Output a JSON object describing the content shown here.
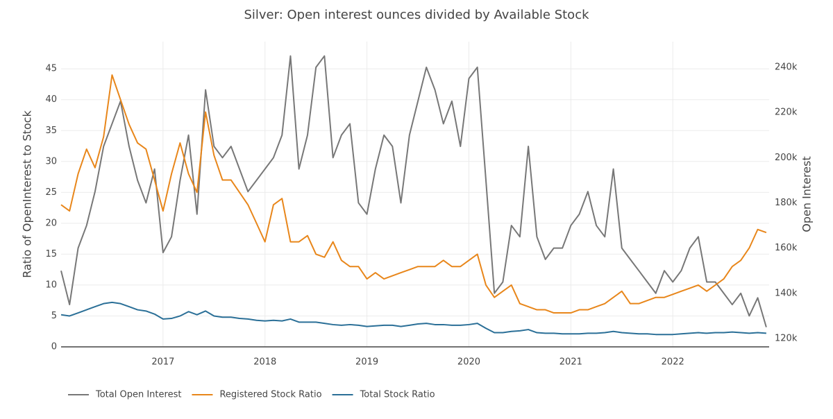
{
  "chart_data": {
    "type": "line",
    "title": "Silver: Open interest ounces divided by Available Stock",
    "y_label": "Ratio of OpenInterest to Stock",
    "y2_label": "Open Interest",
    "x": [
      2016,
      2016.083,
      2016.167,
      2016.25,
      2016.333,
      2016.417,
      2016.5,
      2016.583,
      2016.667,
      2016.75,
      2016.833,
      2016.917,
      2017,
      2017.083,
      2017.167,
      2017.25,
      2017.333,
      2017.417,
      2017.5,
      2017.583,
      2017.667,
      2017.75,
      2017.833,
      2017.917,
      2018,
      2018.083,
      2018.167,
      2018.25,
      2018.333,
      2018.417,
      2018.5,
      2018.583,
      2018.667,
      2018.75,
      2018.833,
      2018.917,
      2019,
      2019.083,
      2019.167,
      2019.25,
      2019.333,
      2019.417,
      2019.5,
      2019.583,
      2019.667,
      2019.75,
      2019.833,
      2019.917,
      2020,
      2020.083,
      2020.167,
      2020.25,
      2020.333,
      2020.417,
      2020.5,
      2020.583,
      2020.667,
      2020.75,
      2020.833,
      2020.917,
      2021,
      2021.083,
      2021.167,
      2021.25,
      2021.333,
      2021.417,
      2021.5,
      2021.583,
      2021.667,
      2021.75,
      2021.833,
      2021.917,
      2022,
      2022.083,
      2022.167,
      2022.25,
      2022.333,
      2022.417,
      2022.5,
      2022.583,
      2022.667,
      2022.75,
      2022.833,
      2022.917
    ],
    "xlim": [
      2016,
      2022.945
    ],
    "xticks": [
      2017,
      2018,
      2019,
      2020,
      2021,
      2022
    ],
    "ylim": [
      0,
      49.4
    ],
    "yticks": [
      0,
      5,
      10,
      15,
      20,
      25,
      30,
      35,
      40,
      45
    ],
    "y2lim": [
      116300,
      251350
    ],
    "y2ticks": [
      {
        "value": 120000,
        "label": "120k"
      },
      {
        "value": 140000,
        "label": "140k"
      },
      {
        "value": 160000,
        "label": "160k"
      },
      {
        "value": 180000,
        "label": "180k"
      },
      {
        "value": 200000,
        "label": "200k"
      },
      {
        "value": 220000,
        "label": "220k"
      },
      {
        "value": 240000,
        "label": "240k"
      }
    ],
    "grid": true,
    "legend": "bottom",
    "series": [
      {
        "name": "Total Open Interest",
        "color": "#777777",
        "axis": "y2",
        "values": [
          150000,
          135000,
          160000,
          170000,
          185000,
          205000,
          215000,
          225000,
          205000,
          190000,
          180000,
          195000,
          158000,
          165000,
          190000,
          210000,
          175000,
          230000,
          205000,
          200000,
          205000,
          195000,
          185000,
          190000,
          195000,
          200000,
          210000,
          245000,
          195000,
          210000,
          240000,
          245000,
          200000,
          210000,
          215000,
          180000,
          175000,
          195000,
          210000,
          205000,
          180000,
          210000,
          225000,
          240000,
          230000,
          215000,
          225000,
          205000,
          235000,
          240000,
          190000,
          140000,
          145000,
          170000,
          165000,
          205000,
          165000,
          155000,
          160000,
          160000,
          170000,
          175000,
          185000,
          170000,
          165000,
          195000,
          160000,
          155000,
          150000,
          145000,
          140000,
          150000,
          145000,
          150000,
          160000,
          165000,
          145000,
          145000,
          140000,
          135000,
          140000,
          130000,
          138000,
          125000
        ]
      },
      {
        "name": "Registered Stock Ratio",
        "color": "#e8861a",
        "values": [
          23,
          22,
          28,
          32,
          29,
          34,
          44,
          40,
          36,
          33,
          32,
          27,
          22,
          28,
          33,
          28,
          25,
          38,
          31,
          27,
          27,
          25,
          23,
          20,
          17,
          23,
          24,
          17,
          17,
          18,
          15,
          14.5,
          17,
          14,
          13,
          13,
          11,
          12,
          11,
          11.5,
          12,
          12.5,
          13,
          13,
          13,
          14,
          13,
          13,
          14,
          15,
          10,
          8,
          9,
          10,
          7,
          6.5,
          6,
          6,
          5.5,
          5.5,
          5.5,
          6,
          6,
          6.5,
          7,
          8,
          9,
          7,
          7,
          7.5,
          8,
          8,
          8.5,
          9,
          9.5,
          10,
          9,
          10,
          11,
          13,
          14,
          16,
          19,
          18.5
        ]
      },
      {
        "name": "Total Stock Ratio",
        "color": "#2a6f97",
        "values": [
          5.2,
          5.0,
          5.5,
          6,
          6.5,
          7,
          7.2,
          7,
          6.5,
          6,
          5.8,
          5.3,
          4.5,
          4.6,
          5,
          5.7,
          5.2,
          5.8,
          5,
          4.8,
          4.8,
          4.6,
          4.5,
          4.3,
          4.2,
          4.3,
          4.2,
          4.5,
          4,
          4,
          4,
          3.8,
          3.6,
          3.5,
          3.6,
          3.5,
          3.3,
          3.4,
          3.5,
          3.5,
          3.3,
          3.5,
          3.7,
          3.8,
          3.6,
          3.6,
          3.5,
          3.5,
          3.6,
          3.8,
          3,
          2.3,
          2.3,
          2.5,
          2.6,
          2.8,
          2.3,
          2.2,
          2.2,
          2.1,
          2.1,
          2.1,
          2.2,
          2.2,
          2.3,
          2.5,
          2.3,
          2.2,
          2.1,
          2.1,
          2.0,
          2.0,
          2.0,
          2.1,
          2.2,
          2.3,
          2.2,
          2.3,
          2.3,
          2.4,
          2.3,
          2.2,
          2.3,
          2.2
        ]
      }
    ]
  }
}
